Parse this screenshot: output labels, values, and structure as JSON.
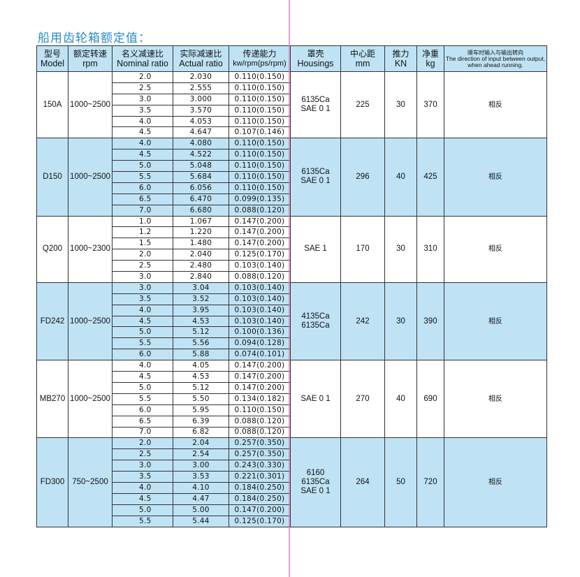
{
  "title": "船用齿轮箱额定值：",
  "headers": [
    {
      "cn": "型号",
      "en": "Model"
    },
    {
      "cn": "额定转速",
      "en": "rpm"
    },
    {
      "cn": "名义减速比",
      "en": "Nominal ratio"
    },
    {
      "cn": "实际减速比",
      "en": "Actual ratio"
    },
    {
      "cn": "传递能力",
      "en": "kw/rpm(ps/rpm)"
    },
    {
      "cn": "罩壳",
      "en": "Housings"
    },
    {
      "cn": "中心距",
      "en": "mm"
    },
    {
      "cn": "推力",
      "en": "KN"
    },
    {
      "cn": "净重",
      "en": "kg"
    },
    {
      "cn": "顺车时输入与输出转向",
      "en": "The direction of input between output, when ahead running."
    }
  ],
  "colors": {
    "blue": "#bfe3f5",
    "title": "#2b8cc0"
  },
  "groups": [
    {
      "model": "150A",
      "rpm": "1000~2500",
      "housings": [
        "6135Ca",
        "SAE 0 1"
      ],
      "mm": "225",
      "kn": "30",
      "kg": "370",
      "direction": "相反",
      "shaded": false,
      "rows": [
        [
          "2.0",
          "2.030",
          "0.110(0.150)"
        ],
        [
          "2.5",
          "2.555",
          "0.110(0.150)"
        ],
        [
          "3.0",
          "3.000",
          "0.110(0.150)"
        ],
        [
          "3.5",
          "3.570",
          "0.110(0.150)"
        ],
        [
          "4.0",
          "4.053",
          "0.110(0.150)"
        ],
        [
          "4.5",
          "4.647",
          "0.107(0.146)"
        ]
      ]
    },
    {
      "model": "D150",
      "rpm": "1000~2500",
      "housings": [
        "6135Ca",
        "SAE 0 1"
      ],
      "mm": "296",
      "kn": "40",
      "kg": "425",
      "direction": "相反",
      "shaded": true,
      "rows": [
        [
          "4.0",
          "4.080",
          "0.110(0.150)"
        ],
        [
          "4.5",
          "4.522",
          "0.110(0.150)"
        ],
        [
          "5.0",
          "5.048",
          "0.110(0.150)"
        ],
        [
          "5.5",
          "5.684",
          "0.110(0.150)"
        ],
        [
          "6.0",
          "6.056",
          "0.110(0.150)"
        ],
        [
          "6.5",
          "6.470",
          "0.099(0.135)"
        ],
        [
          "7.0",
          "6.680",
          "0.088(0.120)"
        ]
      ]
    },
    {
      "model": "Q200",
      "rpm": "1000~2300",
      "housings": [
        "SAE 1"
      ],
      "mm": "170",
      "kn": "30",
      "kg": "310",
      "direction": "相反",
      "shaded": false,
      "rows": [
        [
          "1.0",
          "1.067",
          "0.147(0.200)"
        ],
        [
          "1.2",
          "1.220",
          "0.147(0.200)"
        ],
        [
          "1.5",
          "1.480",
          "0.147(0.200)"
        ],
        [
          "2.0",
          "2.040",
          "0.125(0.170)"
        ],
        [
          "2.5",
          "2.480",
          "0.103(0.140)"
        ],
        [
          "3.0",
          "2.840",
          "0.088(0.120)"
        ]
      ]
    },
    {
      "model": "FD242",
      "rpm": "1000~2500",
      "housings": [
        "4135Ca",
        "6135Ca"
      ],
      "mm": "242",
      "kn": "30",
      "kg": "390",
      "direction": "相反",
      "shaded": true,
      "rows": [
        [
          "3.0",
          "3.04",
          "0.103(0.140)"
        ],
        [
          "3.5",
          "3.52",
          "0.103(0.140)"
        ],
        [
          "4.0",
          "3.95",
          "0.103(0.140)"
        ],
        [
          "4.5",
          "4.53",
          "0.103(0.140)"
        ],
        [
          "5.0",
          "5.12",
          "0.100(0.136)"
        ],
        [
          "5.5",
          "5.56",
          "0.094(0.128)"
        ],
        [
          "6.0",
          "5.88",
          "0.074(0.101)"
        ]
      ]
    },
    {
      "model": "MB270",
      "rpm": "1000~2500",
      "housings": [
        "SAE 0 1"
      ],
      "mm": "270",
      "kn": "40",
      "kg": "690",
      "direction": "相反",
      "shaded": false,
      "rows": [
        [
          "4.0",
          "4.05",
          "0.147(0.200)"
        ],
        [
          "4.5",
          "4.53",
          "0.147(0.200)"
        ],
        [
          "5.0",
          "5.12",
          "0.147(0.200)"
        ],
        [
          "5.5",
          "5.50",
          "0.134(0.182)"
        ],
        [
          "6.0",
          "5.95",
          "0.110(0.150)"
        ],
        [
          "6.5",
          "6.39",
          "0.088(0.120)"
        ],
        [
          "7.0",
          "6.82",
          "0.088(0.120)"
        ]
      ]
    },
    {
      "model": "FD300",
      "rpm": "750~2500",
      "housings": [
        "6160",
        "6135Ca",
        "SAE 0 1"
      ],
      "mm": "264",
      "kn": "50",
      "kg": "720",
      "direction": "相反",
      "shaded": true,
      "rows": [
        [
          "2.0",
          "2.04",
          "0.257(0.350)"
        ],
        [
          "2.5",
          "2.54",
          "0.257(0.350)"
        ],
        [
          "3.0",
          "3.00",
          "0.243(0.330)"
        ],
        [
          "3.5",
          "3.53",
          "0.221(0.301)"
        ],
        [
          "4.0",
          "4.10",
          "0.184(0.250)"
        ],
        [
          "4.5",
          "4.47",
          "0.184(0.250)"
        ],
        [
          "5.0",
          "5.00",
          "0.147(0.200)"
        ],
        [
          "5.5",
          "5.44",
          "0.125(0.170)"
        ]
      ]
    }
  ]
}
